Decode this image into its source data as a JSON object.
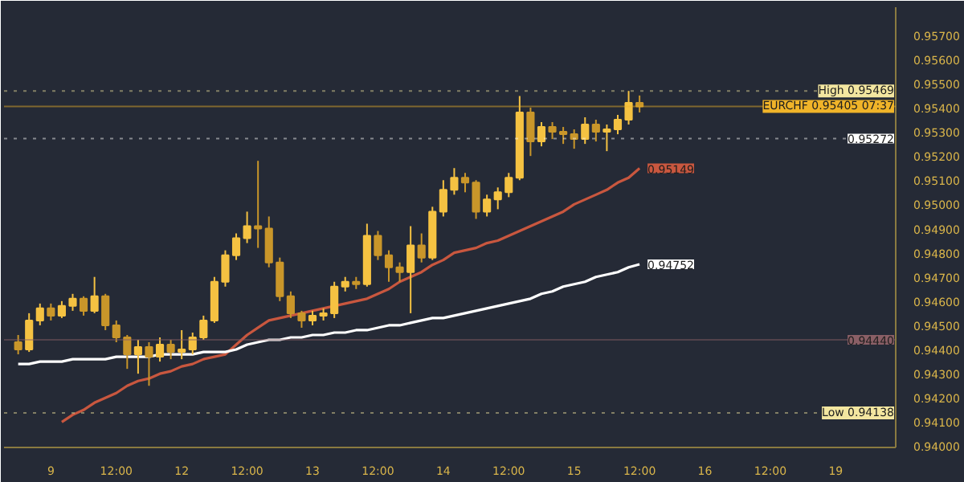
{
  "chart_data": {
    "type": "candlestick",
    "categories": [
      null,
      null,
      null,
      "9",
      null,
      null,
      null,
      null,
      null,
      "12:00",
      null,
      null,
      null,
      null,
      null,
      "12",
      null,
      null,
      null,
      null,
      null,
      "12:00",
      null,
      null,
      null,
      null,
      null,
      "13",
      null,
      null,
      null,
      null,
      null,
      "12:00",
      null,
      null,
      null,
      null,
      null,
      "14",
      null,
      null,
      null,
      null,
      null,
      "12:00",
      null,
      null,
      null,
      null,
      null,
      "15",
      null,
      null,
      null,
      null,
      null,
      "12:00",
      null,
      null,
      null,
      null,
      null,
      "16",
      null,
      null,
      null,
      null,
      null,
      "12:00",
      null,
      null,
      null,
      null,
      null,
      "19",
      null,
      null,
      null,
      null,
      null
    ],
    "ohlc": [
      [
        0.9443,
        0.9446,
        0.9438,
        0.944
      ],
      [
        0.944,
        0.9455,
        0.9439,
        0.9452
      ],
      [
        0.9452,
        0.9459,
        0.945,
        0.9457
      ],
      [
        0.9457,
        0.9459,
        0.9452,
        0.9454
      ],
      [
        0.9454,
        0.946,
        0.9453,
        0.9458
      ],
      [
        0.9458,
        0.9463,
        0.9456,
        0.9461
      ],
      [
        0.9461,
        0.9462,
        0.9454,
        0.9456
      ],
      [
        0.9456,
        0.947,
        0.9455,
        0.9462
      ],
      [
        0.9462,
        0.9463,
        0.9448,
        0.945
      ],
      [
        0.945,
        0.9452,
        0.9443,
        0.9445
      ],
      [
        0.9445,
        0.9446,
        0.9432,
        0.9438
      ],
      [
        0.9438,
        0.9444,
        0.943,
        0.9441
      ],
      [
        0.9441,
        0.9443,
        0.9425,
        0.9437
      ],
      [
        0.9437,
        0.9445,
        0.9435,
        0.9442
      ],
      [
        0.9442,
        0.9444,
        0.9436,
        0.9439
      ],
      [
        0.9439,
        0.9448,
        0.9436,
        0.944
      ],
      [
        0.944,
        0.9447,
        0.9438,
        0.9445
      ],
      [
        0.9445,
        0.9454,
        0.9444,
        0.9452
      ],
      [
        0.9452,
        0.947,
        0.9451,
        0.9468
      ],
      [
        0.9468,
        0.9481,
        0.9466,
        0.9479
      ],
      [
        0.9479,
        0.9488,
        0.9477,
        0.9486
      ],
      [
        0.9486,
        0.9497,
        0.9484,
        0.9491
      ],
      [
        0.9491,
        0.9518,
        0.9482,
        0.949
      ],
      [
        0.949,
        0.9495,
        0.9474,
        0.9476
      ],
      [
        0.9476,
        0.9478,
        0.946,
        0.9462
      ],
      [
        0.9462,
        0.9464,
        0.9453,
        0.9455
      ],
      [
        0.9455,
        0.9456,
        0.9449,
        0.9452
      ],
      [
        0.9452,
        0.9456,
        0.945,
        0.9454
      ],
      [
        0.9454,
        0.9457,
        0.9452,
        0.9455
      ],
      [
        0.9455,
        0.9468,
        0.9453,
        0.9466
      ],
      [
        0.9466,
        0.947,
        0.9464,
        0.9468
      ],
      [
        0.9468,
        0.947,
        0.9465,
        0.9467
      ],
      [
        0.9467,
        0.9492,
        0.9466,
        0.9487
      ],
      [
        0.9487,
        0.9489,
        0.9477,
        0.9479
      ],
      [
        0.9479,
        0.9481,
        0.9468,
        0.9474
      ],
      [
        0.9474,
        0.9476,
        0.9468,
        0.9472
      ],
      [
        0.9472,
        0.9491,
        0.9455,
        0.9483
      ],
      [
        0.9483,
        0.9488,
        0.9476,
        0.9478
      ],
      [
        0.9478,
        0.9499,
        0.9477,
        0.9497
      ],
      [
        0.9497,
        0.951,
        0.9495,
        0.9506
      ],
      [
        0.9506,
        0.9515,
        0.9504,
        0.9511
      ],
      [
        0.9511,
        0.9513,
        0.9505,
        0.9509
      ],
      [
        0.9509,
        0.951,
        0.9494,
        0.9497
      ],
      [
        0.9497,
        0.9504,
        0.9495,
        0.9502
      ],
      [
        0.9502,
        0.9507,
        0.9498,
        0.9505
      ],
      [
        0.9505,
        0.9513,
        0.9503,
        0.9511
      ],
      [
        0.9511,
        0.95448,
        0.951,
        0.9538
      ],
      [
        0.9538,
        0.954,
        0.952,
        0.9526
      ],
      [
        0.9526,
        0.9534,
        0.9524,
        0.9532
      ],
      [
        0.9532,
        0.9534,
        0.9527,
        0.953
      ],
      [
        0.953,
        0.9532,
        0.9525,
        0.9529
      ],
      [
        0.9529,
        0.9531,
        0.9523,
        0.9527
      ],
      [
        0.9527,
        0.9536,
        0.9525,
        0.9533
      ],
      [
        0.9533,
        0.9535,
        0.9526,
        0.953
      ],
      [
        0.953,
        0.9533,
        0.9522,
        0.9531
      ],
      [
        0.9531,
        0.9537,
        0.9529,
        0.9535
      ],
      [
        0.9535,
        0.95469,
        0.9533,
        0.9542
      ],
      [
        0.9542,
        0.9545,
        0.9538,
        0.95405
      ],
      null,
      null,
      null,
      null,
      null,
      null,
      null,
      null,
      null,
      null,
      null,
      null,
      null,
      null,
      null,
      null,
      null,
      null,
      null,
      null,
      null,
      null,
      null
    ],
    "colors": [
      "#c9962a",
      "#f5c242",
      "#f5c242",
      "#c9962a",
      "#f5c242",
      "#f5c242",
      "#c9962a",
      "#f5c242",
      "#c9962a",
      "#c9962a",
      "#c9962a",
      "#f5c242",
      "#c9962a",
      "#f5c242",
      "#c9962a",
      "#f5c242",
      "#f5c242",
      "#f5c242",
      "#f5c242",
      "#f5c242",
      "#f5c242",
      "#f5c242",
      "#c9962a",
      "#c9962a",
      "#c9962a",
      "#c9962a",
      "#c9962a",
      "#f5c242",
      "#f5c242",
      "#f5c242",
      "#f5c242",
      "#c9962a",
      "#f5c242",
      "#c9962a",
      "#c9962a",
      "#c9962a",
      "#f5c242",
      "#c9962a",
      "#f5c242",
      "#f5c242",
      "#f5c242",
      "#c9962a",
      "#c9962a",
      "#f5c242",
      "#f5c242",
      "#f5c242",
      "#f5c242",
      "#c9962a",
      "#f5c242",
      "#c9962a",
      "#c9962a",
      "#c9962a",
      "#f5c242",
      "#c9962a",
      "#f5c242",
      "#f5c242",
      "#f5c242",
      "#c9962a",
      null,
      null,
      null,
      null,
      null,
      null,
      null,
      null,
      null,
      null,
      null,
      null,
      null,
      null,
      null,
      null,
      null,
      null,
      null,
      null,
      null,
      null,
      null
    ],
    "series": [
      {
        "type": "line",
        "color": "#c9573f",
        "values": [
          null,
          null,
          null,
          null,
          0.941,
          0.9413,
          0.9415,
          0.9418,
          0.942,
          0.9422,
          0.9425,
          0.9427,
          0.9428,
          0.943,
          0.9431,
          0.9433,
          0.9434,
          0.9436,
          0.9437,
          0.9438,
          0.9442,
          0.9446,
          0.9449,
          0.9452,
          0.9453,
          0.9454,
          0.9455,
          0.9456,
          0.9457,
          0.9458,
          0.9459,
          0.946,
          0.9461,
          0.9463,
          0.9465,
          0.9468,
          0.947,
          0.9472,
          0.9475,
          0.9477,
          0.948,
          0.9481,
          0.9482,
          0.9484,
          0.9485,
          0.9487,
          0.9489,
          0.9491,
          0.9493,
          0.9495,
          0.9497,
          0.95,
          0.9502,
          0.9504,
          0.9506,
          0.9509,
          0.9511,
          0.95149,
          null,
          null,
          null,
          null,
          null,
          null,
          null,
          null,
          null,
          null,
          null,
          null,
          null,
          null,
          null,
          null,
          null,
          null,
          null,
          null,
          null,
          null,
          null
        ],
        "value_labels": [
          null,
          null,
          null,
          null,
          null,
          null,
          null,
          null,
          null,
          null,
          null,
          null,
          null,
          null,
          null,
          null,
          null,
          null,
          null,
          null,
          null,
          null,
          null,
          null,
          null,
          null,
          null,
          null,
          null,
          null,
          null,
          null,
          null,
          null,
          null,
          null,
          null,
          null,
          null,
          null,
          null,
          null,
          null,
          null,
          null,
          null,
          null,
          null,
          null,
          null,
          null,
          null,
          null,
          null,
          null,
          null,
          null,
          "0.95149",
          null,
          null,
          null,
          null,
          null,
          null,
          null,
          null,
          null,
          null,
          null,
          null,
          null,
          null,
          null,
          null,
          null,
          null,
          null,
          null,
          null,
          null,
          null
        ]
      },
      {
        "type": "line",
        "color": "#ffffff",
        "values": [
          0.9434,
          0.9434,
          0.9435,
          0.9435,
          0.9435,
          0.9436,
          0.9436,
          0.9436,
          0.9436,
          0.9437,
          0.9437,
          0.9437,
          0.9437,
          0.9438,
          0.9438,
          0.9438,
          0.9438,
          0.9439,
          0.9439,
          0.9439,
          0.944,
          0.9442,
          0.9443,
          0.9444,
          0.9444,
          0.9445,
          0.9445,
          0.9446,
          0.9446,
          0.9447,
          0.9447,
          0.9448,
          0.9448,
          0.9449,
          0.945,
          0.945,
          0.9451,
          0.9452,
          0.9453,
          0.9453,
          0.9454,
          0.9455,
          0.9456,
          0.9457,
          0.9458,
          0.9459,
          0.946,
          0.9461,
          0.9463,
          0.9464,
          0.9466,
          0.9467,
          0.9468,
          0.947,
          0.9471,
          0.9472,
          0.9474,
          0.94752,
          null,
          null,
          null,
          null,
          null,
          null,
          null,
          null,
          null,
          null,
          null,
          null,
          null,
          null,
          null,
          null,
          null,
          null,
          null,
          null,
          null,
          null,
          null
        ],
        "value_labels": [
          null,
          null,
          null,
          null,
          null,
          null,
          null,
          null,
          null,
          null,
          null,
          null,
          null,
          null,
          null,
          null,
          null,
          null,
          null,
          null,
          null,
          null,
          null,
          null,
          null,
          null,
          null,
          null,
          null,
          null,
          null,
          null,
          null,
          null,
          null,
          null,
          null,
          null,
          null,
          null,
          null,
          null,
          null,
          null,
          null,
          null,
          null,
          null,
          null,
          null,
          null,
          null,
          null,
          null,
          null,
          null,
          null,
          "0.94752",
          null,
          null,
          null,
          null,
          null,
          null,
          null,
          null,
          null,
          null,
          null,
          null,
          null,
          null,
          null,
          null,
          null,
          null,
          null,
          null,
          null,
          null,
          null
        ]
      }
    ],
    "ylim": [
      0.93995,
      0.95815
    ],
    "yticks": [
      {
        "value": 0.94,
        "label": "0.94000"
      },
      {
        "value": 0.941,
        "label": "0.94100"
      },
      {
        "value": 0.942,
        "label": "0.94200"
      },
      {
        "value": 0.943,
        "label": "0.94300"
      },
      {
        "value": 0.944,
        "label": "0.94400"
      },
      {
        "value": 0.945,
        "label": "0.94500"
      },
      {
        "value": 0.946,
        "label": "0.94600"
      },
      {
        "value": 0.947,
        "label": "0.94700"
      },
      {
        "value": 0.948,
        "label": "0.94800"
      },
      {
        "value": 0.949,
        "label": "0.94900"
      },
      {
        "value": 0.95,
        "label": "0.95000"
      },
      {
        "value": 0.951,
        "label": "0.95100"
      },
      {
        "value": 0.952,
        "label": "0.95200"
      },
      {
        "value": 0.953,
        "label": "0.95300"
      },
      {
        "value": 0.954,
        "label": "0.95400"
      },
      {
        "value": 0.955,
        "label": "0.95500"
      },
      {
        "value": 0.956,
        "label": "0.95600"
      },
      {
        "value": 0.957,
        "label": "0.95700"
      }
    ],
    "ref_lines": [
      {
        "axis": "y",
        "value": 0.9444,
        "label": "0.94440",
        "color": "#8a5f66",
        "line_style": "solid"
      },
      {
        "axis": "y",
        "value": 0.95405,
        "label": "EURCHF 0.95405 07:37",
        "color": "#f0b429",
        "line_style": "solid"
      },
      {
        "axis": "y",
        "value": 0.95469,
        "label": "High 0.95469",
        "color": "#f3e6a0",
        "line_style": "dotted"
      },
      {
        "axis": "y",
        "value": 0.95272,
        "label": "0.95272",
        "color": "#ffffff",
        "line_style": "dotted"
      },
      {
        "axis": "y",
        "value": 0.94138,
        "label": "Low 0.94138",
        "color": "#f3e6a0",
        "line_style": "dotted"
      }
    ],
    "grid": false
  }
}
